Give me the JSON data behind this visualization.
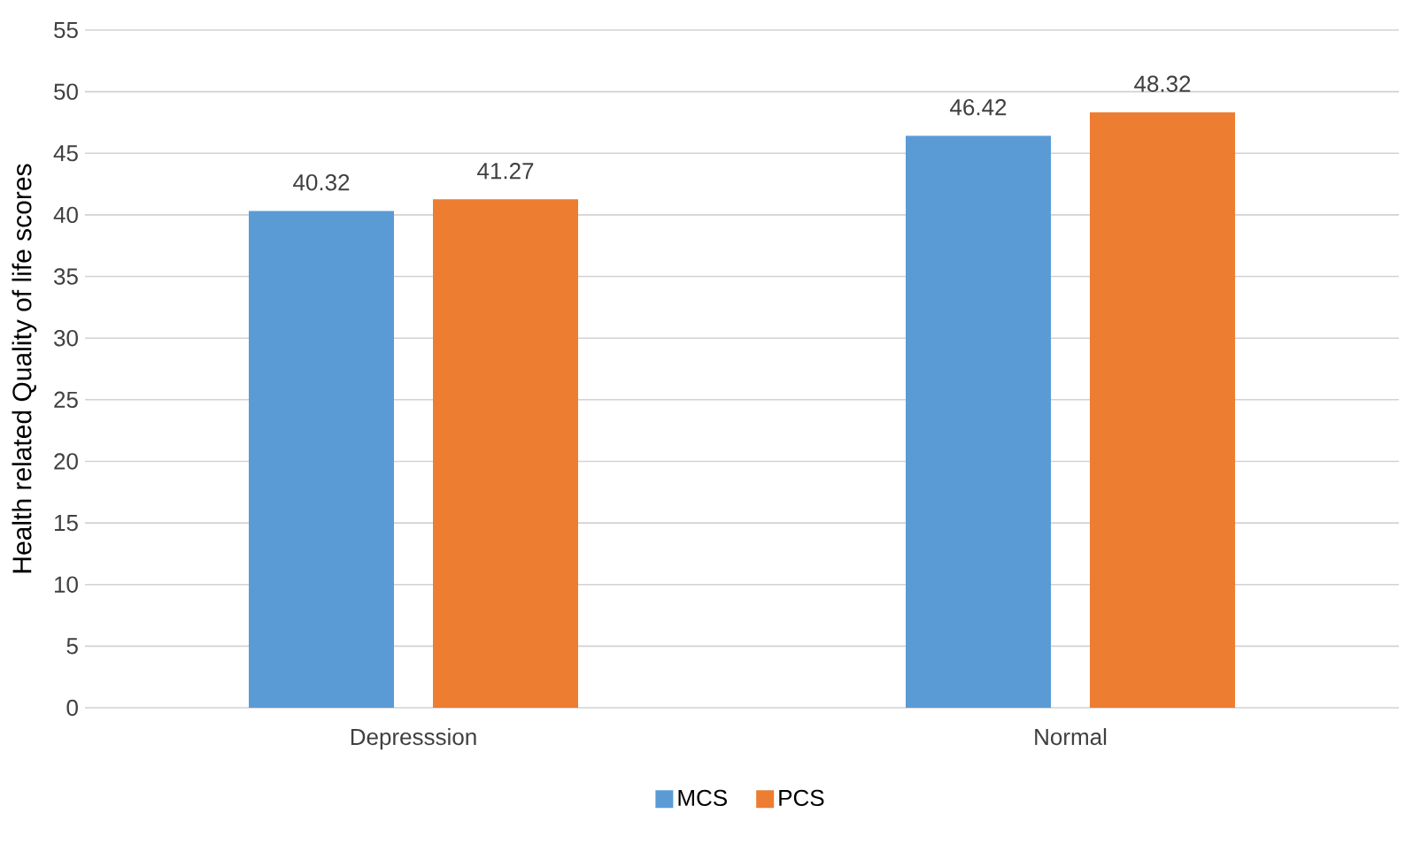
{
  "chart_data": {
    "type": "bar",
    "ylabel": "Health related Quality of life scores",
    "categories": [
      "Depresssion",
      "Normal"
    ],
    "series": [
      {
        "name": "MCS",
        "color": "#5b9bd5",
        "values": [
          40.32,
          46.42
        ]
      },
      {
        "name": "PCS",
        "color": "#ed7d31",
        "values": [
          41.27,
          48.32
        ]
      }
    ],
    "ylim": [
      0,
      55
    ],
    "yticks": [
      0,
      5,
      10,
      15,
      20,
      25,
      30,
      35,
      40,
      45,
      50,
      55
    ],
    "grid": "y",
    "legend": "bottom",
    "data_labels": true
  }
}
